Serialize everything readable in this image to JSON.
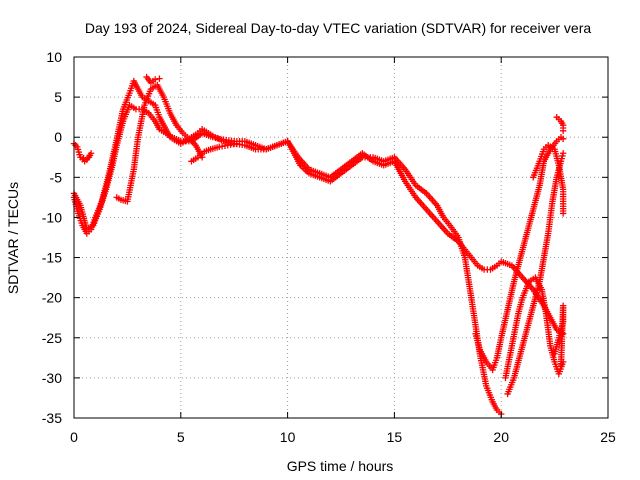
{
  "chart_data": {
    "type": "scatter",
    "title": "Day 193 of 2024, Sidereal Day-to-day VTEC variation (SDTVAR) for receiver vera",
    "xlabel": "GPS time / hours",
    "ylabel": "SDTVAR / TECUs",
    "xlim": [
      0,
      25
    ],
    "ylim": [
      -35,
      10
    ],
    "xticks": [
      "0",
      "5",
      "10",
      "15",
      "20",
      "25"
    ],
    "yticks": [
      "10",
      "5",
      "0",
      "-5",
      "-10",
      "-15",
      "-20",
      "-25",
      "-30",
      "-35"
    ],
    "grid": true,
    "marker": "+",
    "color": "#ff0000",
    "series": [
      {
        "values_x": [
          0.0,
          0.15,
          0.3,
          0.5,
          0.7,
          0.8,
          0.6,
          0.45
        ],
        "values_y": [
          -0.8,
          -1.2,
          -2.5,
          -3.0,
          -2.5,
          -2.0,
          -2.8,
          -2.6
        ]
      },
      {
        "values_x": [
          0.0,
          0.2,
          0.4,
          0.6,
          0.8,
          1.0,
          1.3,
          1.6,
          1.9,
          2.1,
          2.3,
          2.6,
          2.8,
          3.0,
          3.2,
          3.5,
          3.8,
          4.0,
          4.2,
          4.5,
          4.8,
          5.0,
          5.2,
          5.5,
          5.8,
          6.0,
          6.3,
          6.6,
          7.0,
          7.5,
          8.0,
          8.5,
          9.0,
          9.5,
          10.0,
          10.3,
          10.6,
          11.0,
          11.5,
          12.0,
          12.5,
          13.0,
          13.5,
          14.0,
          14.5,
          15.0,
          15.5,
          16.0,
          16.5,
          17.0,
          17.3,
          17.6,
          18.0,
          18.3,
          18.6,
          19.0,
          19.3,
          19.6,
          19.8,
          20.0
        ],
        "values_y": [
          -7.5,
          -9.5,
          -11.0,
          -12.0,
          -11.5,
          -10.0,
          -8.0,
          -5.0,
          -1.5,
          1.0,
          3.5,
          5.5,
          7.0,
          6.0,
          5.0,
          4.5,
          4.0,
          2.5,
          1.5,
          0.0,
          -0.5,
          -0.8,
          -0.5,
          0.0,
          0.5,
          1.0,
          0.5,
          0.0,
          -0.5,
          -0.8,
          -1.0,
          -1.5,
          -1.5,
          -1.0,
          -0.5,
          -2.0,
          -3.5,
          -4.5,
          -5.0,
          -5.5,
          -4.5,
          -3.5,
          -2.5,
          -2.5,
          -3.0,
          -2.5,
          -4.0,
          -6.0,
          -7.0,
          -8.5,
          -10.0,
          -11.0,
          -12.5,
          -15.0,
          -20.0,
          -27.0,
          -31.0,
          -33.0,
          -34.0,
          -34.5
        ]
      },
      {
        "values_x": [
          0.0,
          0.3,
          0.6,
          0.9,
          1.2,
          1.5,
          1.8,
          2.0,
          2.3,
          2.6,
          2.9,
          3.2,
          3.5,
          3.8,
          4.0,
          4.3,
          4.6,
          5.0,
          5.5,
          6.0,
          6.5,
          7.0,
          7.5,
          8.0,
          8.5,
          9.0,
          9.5,
          10.0,
          10.5,
          11.0,
          11.5,
          12.0,
          12.5,
          13.0,
          13.5,
          14.0,
          14.5,
          15.0,
          15.5,
          16.0,
          16.5,
          17.0,
          17.5,
          18.0,
          18.3,
          18.6,
          18.9,
          19.2,
          19.5,
          19.8,
          20.0,
          20.5,
          21.0,
          21.5,
          22.0,
          22.3,
          22.6,
          22.9
        ],
        "values_y": [
          -7.0,
          -8.5,
          -11.5,
          -11.0,
          -9.0,
          -6.5,
          -3.5,
          -1.0,
          2.0,
          4.0,
          3.5,
          3.5,
          3.0,
          2.0,
          1.0,
          0.5,
          0.0,
          -0.5,
          -0.5,
          0.5,
          0.0,
          -0.3,
          -0.5,
          -0.5,
          -1.0,
          -1.5,
          -1.0,
          -0.5,
          -2.5,
          -4.0,
          -4.5,
          -5.0,
          -4.0,
          -3.0,
          -2.0,
          -3.0,
          -3.5,
          -3.0,
          -5.5,
          -7.5,
          -9.0,
          -10.5,
          -12.0,
          -13.0,
          -14.0,
          -15.0,
          -16.0,
          -16.5,
          -16.5,
          -16.0,
          -15.5,
          -16.0,
          -17.5,
          -19.0,
          -21.0,
          -22.5,
          -24.0,
          -24.5
        ]
      },
      {
        "values_x": [
          18.8,
          19.0,
          19.3,
          19.6,
          19.8,
          20.0,
          20.3,
          20.6,
          21.0,
          21.4,
          21.8,
          22.0,
          22.3,
          22.6,
          22.8,
          22.9
        ],
        "values_y": [
          -24.5,
          -26.5,
          -28.0,
          -29.0,
          -27.5,
          -25.0,
          -21.5,
          -18.0,
          -14.0,
          -10.0,
          -6.0,
          -3.0,
          -1.5,
          -0.5,
          0.0,
          -0.2
        ]
      },
      {
        "values_x": [
          20.2,
          20.5,
          20.8,
          21.0,
          21.3,
          21.6,
          21.9,
          22.1,
          22.3,
          22.5,
          22.7,
          22.9
        ],
        "values_y": [
          -30.0,
          -26.0,
          -22.0,
          -20.0,
          -18.0,
          -17.5,
          -19.0,
          -22.0,
          -26.0,
          -28.0,
          -29.5,
          -28.0
        ]
      },
      {
        "values_x": [
          21.5,
          21.8,
          22.0,
          22.2,
          22.5,
          22.7,
          22.9,
          22.9
        ],
        "values_y": [
          -5.0,
          -3.0,
          -1.5,
          -1.0,
          -1.5,
          -3.5,
          -6.5,
          -9.5
        ]
      },
      {
        "values_x": [
          20.3,
          20.6,
          20.9,
          21.2,
          21.5,
          21.8,
          22.0,
          22.2,
          22.4,
          22.6,
          22.8,
          22.9
        ],
        "values_y": [
          -32.0,
          -30.0,
          -27.0,
          -24.0,
          -21.0,
          -18.0,
          -15.0,
          -12.0,
          -8.0,
          -5.0,
          -3.0,
          -2.0
        ]
      },
      {
        "values_x": [
          22.6,
          22.8,
          22.9,
          22.9
        ],
        "values_y": [
          2.5,
          2.0,
          1.5,
          0.8
        ]
      },
      {
        "values_x": [
          22.5,
          22.7,
          22.9,
          22.9,
          22.8
        ],
        "values_y": [
          -27.0,
          -25.0,
          -23.0,
          -21.0,
          -28.5
        ]
      },
      {
        "values_x": [
          2.0,
          2.2,
          2.5,
          2.8,
          3.0,
          3.3,
          3.6,
          3.9,
          4.2,
          4.5,
          4.8,
          5.1,
          5.4,
          5.7,
          6.0
        ],
        "values_y": [
          -7.5,
          -7.8,
          -8.0,
          -4.0,
          0.0,
          4.0,
          6.0,
          6.5,
          5.0,
          3.0,
          1.5,
          0.5,
          -0.2,
          -1.0,
          -2.5
        ]
      },
      {
        "values_x": [
          3.4,
          3.6,
          3.8,
          4.0
        ],
        "values_y": [
          7.5,
          6.8,
          7.2,
          7.3
        ]
      },
      {
        "values_x": [
          5.5,
          5.8,
          6.1,
          6.4,
          6.8,
          7.2,
          7.6
        ],
        "values_y": [
          -3.0,
          -2.5,
          -1.8,
          -1.5,
          -1.2,
          -1.0,
          -0.8
        ]
      }
    ]
  }
}
